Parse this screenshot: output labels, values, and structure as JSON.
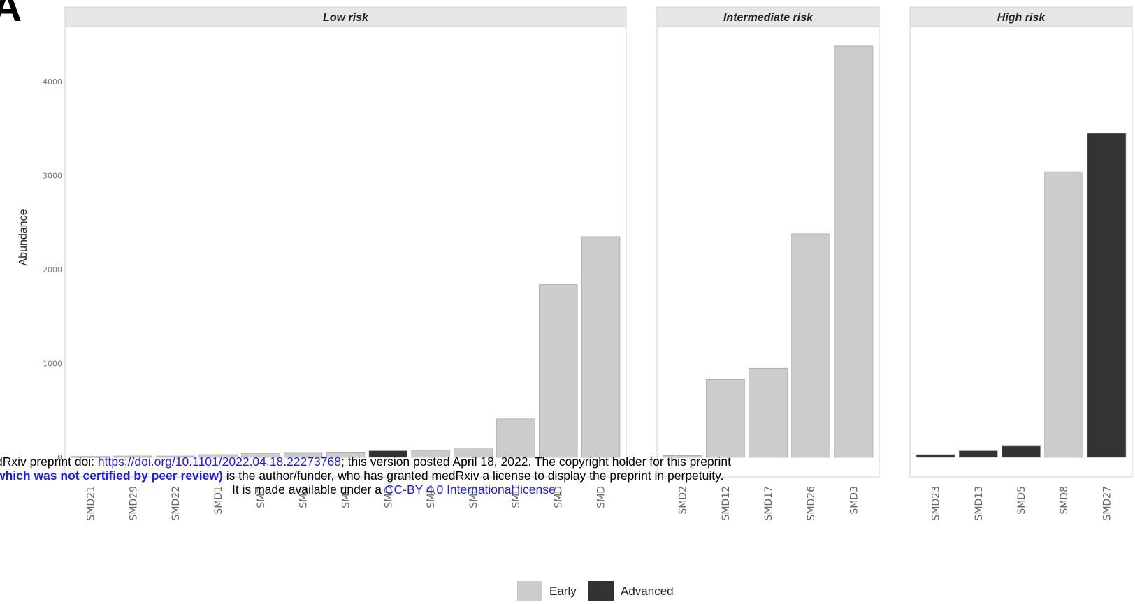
{
  "panel_label": "A",
  "notice": {
    "line1_prefix": "dRxiv preprint doi: ",
    "doi_link": "https://doi.org/10.1101/2022.04.18.22273768",
    "line1_suffix": "; this version posted April 18, 2022. The copyright holder for this preprint",
    "line2_bold": "which was not certified by peer review)",
    "line2_rest": " is the author/funder, who has granted medRxiv a license to display the preprint in perpetuity.",
    "line3_prefix": "It is made available under a ",
    "license_link": "CC-BY 4.0 International license",
    "line3_suffix": " ."
  },
  "colors": {
    "Early": "#cccccc",
    "Advanced": "#333333",
    "strip_bg": "#e6e6e6"
  },
  "chart_data": {
    "type": "bar",
    "ylabel": "Abundance",
    "xlabel": "",
    "ylim": [
      0,
      4500
    ],
    "yticks": [
      0,
      1000,
      2000,
      3000,
      4000
    ],
    "legend": {
      "position": "bottom",
      "items": [
        "Early",
        "Advanced"
      ]
    },
    "facets": [
      {
        "title": "Low risk",
        "categories": [
          "SMD21",
          "SMD29",
          "SMD22",
          "SMD1",
          "SMD",
          "SMD",
          "SMD",
          "SMD",
          "SMD",
          "SMD",
          "SMD",
          "SMD",
          "SMD"
        ],
        "values": [
          10,
          15,
          15,
          30,
          40,
          45,
          50,
          70,
          75,
          100,
          410,
          1840,
          2350
        ],
        "stage": [
          "Early",
          "Early",
          "Early",
          "Early",
          "Early",
          "Early",
          "Early",
          "Advanced",
          "Early",
          "Early",
          "Early",
          "Early",
          "Early"
        ]
      },
      {
        "title": "Intermediate risk",
        "categories": [
          "SMD2",
          "SMD12",
          "SMD17",
          "SMD26",
          "SMD3"
        ],
        "values": [
          20,
          830,
          950,
          2380,
          4380
        ],
        "stage": [
          "Early",
          "Early",
          "Early",
          "Early",
          "Early"
        ]
      },
      {
        "title": "High risk",
        "categories": [
          "SMD23",
          "SMD13",
          "SMD5",
          "SMD8",
          "SMD27"
        ],
        "values": [
          30,
          70,
          120,
          3040,
          3450
        ],
        "stage": [
          "Advanced",
          "Advanced",
          "Advanced",
          "Early",
          "Advanced"
        ]
      }
    ]
  }
}
